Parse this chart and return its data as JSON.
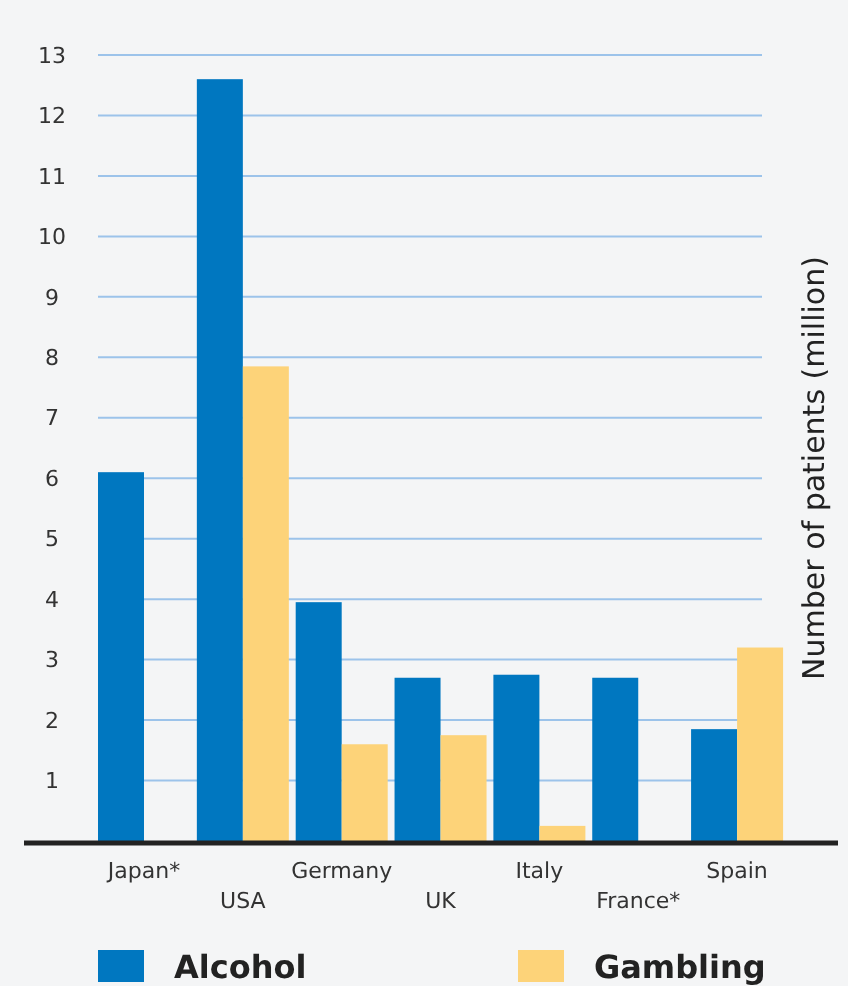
{
  "chart_data": {
    "type": "bar",
    "ylabel": "Number of patients (million)",
    "categories": [
      "Japan*",
      "USA",
      "Germany",
      "UK",
      "Italy",
      "France*",
      "Spain"
    ],
    "series": [
      {
        "name": "Alcohol",
        "color": "#0077c0",
        "values": [
          6.1,
          12.6,
          3.95,
          2.7,
          2.75,
          2.7,
          1.85
        ]
      },
      {
        "name": "Gambling",
        "color": "#fdd379",
        "values": [
          null,
          7.85,
          1.6,
          1.75,
          0.25,
          null,
          3.2
        ]
      }
    ],
    "ylim": [
      0,
      13
    ],
    "yticks": [
      1,
      2,
      3,
      4,
      5,
      6,
      7,
      8,
      9,
      10,
      11,
      12,
      13
    ],
    "grid": "y",
    "legend": "bottom"
  }
}
